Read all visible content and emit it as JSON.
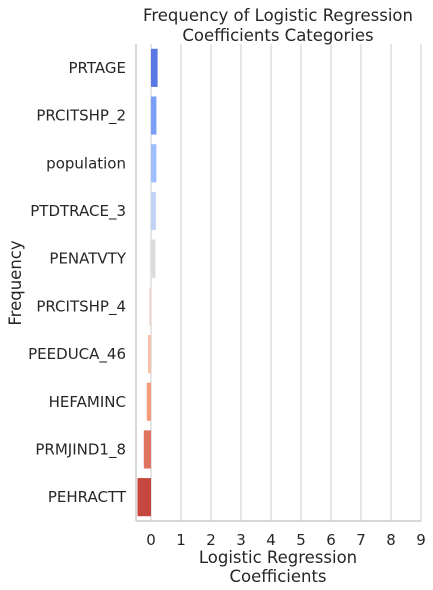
{
  "chart_data": {
    "type": "bar",
    "orientation": "horizontal",
    "title": [
      "Frequency of Logistic Regression",
      "Coefficients Categories"
    ],
    "xlabel": [
      "Logistic Regression",
      "Coefficients"
    ],
    "ylabel": "Frequency",
    "xlim": [
      -0.5,
      9
    ],
    "xticks": [
      0,
      1,
      2,
      3,
      4,
      5,
      6,
      7,
      8,
      9
    ],
    "grid": "vertical",
    "categories": [
      "PRTAGE",
      "PRCITSHP_2",
      "population",
      "PTDTRACE_3",
      "PENATVTY",
      "PRCITSHP_4",
      "PEEDUCA_46",
      "HEFAMINC",
      "PRMJIND1_8",
      "PEHRACTT"
    ],
    "values": [
      0.22,
      0.18,
      0.18,
      0.16,
      0.15,
      -0.06,
      -0.1,
      -0.14,
      -0.24,
      -0.45
    ],
    "colors": [
      "#5a78e2",
      "#7b9ef8",
      "#9ebefe",
      "#bfd3f6",
      "#dadce0",
      "#efd7cb",
      "#f5c1a7",
      "#f39b7b",
      "#de7461",
      "#c5473d"
    ]
  }
}
